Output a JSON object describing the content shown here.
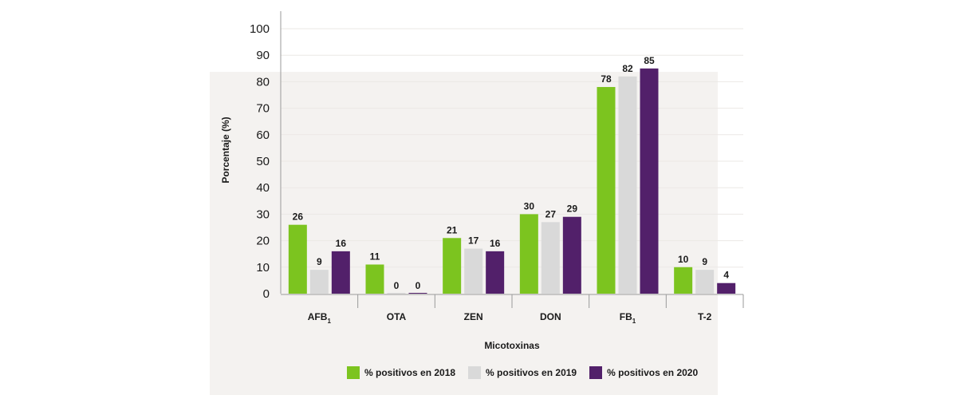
{
  "chart_data": {
    "type": "bar",
    "title": "",
    "xlabel": "Micotoxinas",
    "ylabel": "Porcentaje (%)",
    "ylim": [
      0,
      100
    ],
    "yticks": [
      "0",
      "10",
      "20",
      "30",
      "40",
      "50",
      "60",
      "70",
      "80",
      "90",
      "100"
    ],
    "grid": true,
    "legend_position": "bottom",
    "categories": [
      "AFB1",
      "OTA",
      "ZEN",
      "DON",
      "FB1",
      "T-2"
    ],
    "series": [
      {
        "name": "% positivos en 2018",
        "color": "#7cc41f",
        "values": [
          26,
          11,
          21,
          30,
          78,
          10
        ]
      },
      {
        "name": "% positivos en 2019",
        "color": "#d9d9d9",
        "values": [
          9,
          0,
          17,
          27,
          82,
          9
        ]
      },
      {
        "name": "% positivos en 2020",
        "color": "#52206a",
        "values": [
          16,
          0,
          16,
          29,
          85,
          4
        ]
      }
    ]
  }
}
